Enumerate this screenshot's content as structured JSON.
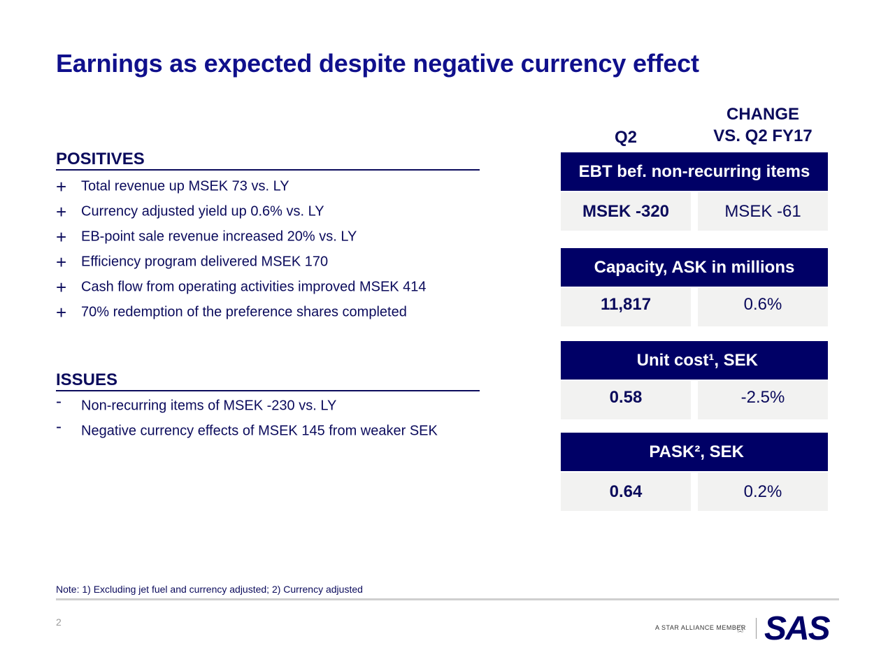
{
  "title": "Earnings as expected despite negative currency effect",
  "columns": {
    "q2": "Q2",
    "change_line1": "CHANGE",
    "change_line2": "VS. Q2 FY17"
  },
  "positives": {
    "heading": "POSITIVES",
    "symbol": "+",
    "items": [
      "Total revenue up MSEK 73 vs. LY",
      "Currency adjusted yield up 0.6% vs. LY",
      "EB-point sale revenue increased 20% vs. LY",
      "Efficiency program delivered MSEK 170",
      "Cash flow from operating activities improved MSEK 414",
      "70% redemption of the preference shares completed"
    ]
  },
  "issues": {
    "heading": "ISSUES",
    "symbol": "-",
    "items": [
      "Non-recurring items of MSEK -230 vs. LY",
      "Negative currency effects of MSEK 145 from weaker SEK"
    ]
  },
  "kpis": [
    {
      "label": "EBT bef. non-recurring items",
      "value": "MSEK -320",
      "change": "MSEK -61"
    },
    {
      "label": "Capacity, ASK in millions",
      "value": "11,817",
      "change": "0.6%"
    },
    {
      "label": "Unit cost¹, SEK",
      "value": "0.58",
      "change": "-2.5%"
    },
    {
      "label": "PASK², SEK",
      "value": "0.64",
      "change": "0.2%"
    }
  ],
  "note": "Note: 1) Excluding jet fuel and currency adjusted; 2) Currency adjusted",
  "page_number": "2",
  "footer": {
    "alliance_text": "A STAR ALLIANCE MEMBER",
    "logo_text": "SAS",
    "star_icon": "star-alliance-icon"
  },
  "colors": {
    "title": "#10108c",
    "header_bg": "#000066",
    "cell_bg": "#f2f2f1",
    "text": "#0b0b5c"
  }
}
